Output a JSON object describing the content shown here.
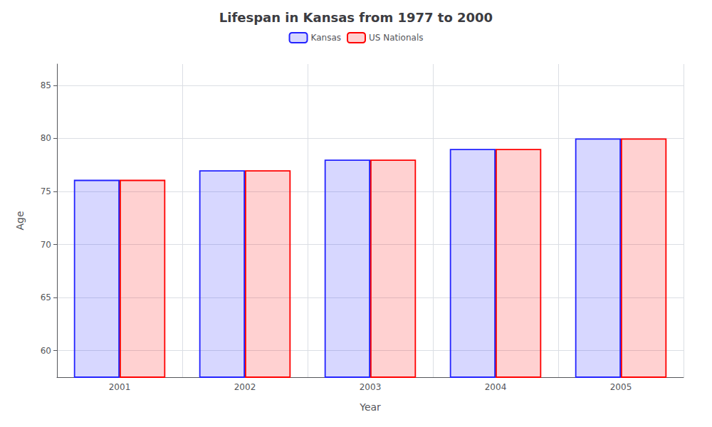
{
  "chart_data": {
    "type": "bar",
    "title": "Lifespan in Kansas from 1977 to 2000",
    "x_label": "Year",
    "y_label": "Age",
    "categories": [
      "2001",
      "2002",
      "2003",
      "2004",
      "2005"
    ],
    "series": [
      {
        "name": "Kansas",
        "color": "#2222ff",
        "values": [
          76.1,
          77.0,
          78.0,
          79.0,
          80.0
        ]
      },
      {
        "name": "US Nationals",
        "color": "#ff0000",
        "values": [
          76.1,
          77.0,
          78.0,
          79.0,
          80.0
        ]
      }
    ],
    "ylim": [
      57.5,
      87.0
    ],
    "yticks": [
      60,
      65,
      70,
      75,
      80,
      85
    ],
    "grid": true,
    "legend": "top"
  }
}
